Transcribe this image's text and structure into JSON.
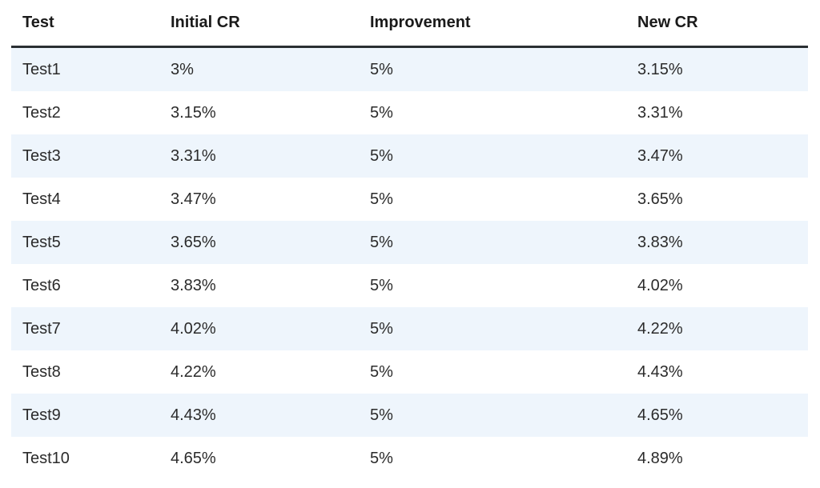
{
  "table": {
    "headers": [
      "Test",
      "Initial CR",
      "Improvement",
      "New CR"
    ],
    "rows": [
      [
        "Test1",
        "3%",
        "5%",
        "3.15%"
      ],
      [
        "Test2",
        "3.15%",
        "5%",
        "3.31%"
      ],
      [
        "Test3",
        "3.31%",
        "5%",
        "3.47%"
      ],
      [
        "Test4",
        "3.47%",
        "5%",
        "3.65%"
      ],
      [
        "Test5",
        "3.65%",
        "5%",
        "3.83%"
      ],
      [
        "Test6",
        "3.83%",
        "5%",
        "4.02%"
      ],
      [
        "Test7",
        "4.02%",
        "5%",
        "4.22%"
      ],
      [
        "Test8",
        "4.22%",
        "5%",
        "4.43%"
      ],
      [
        "Test9",
        "4.43%",
        "5%",
        "4.65%"
      ],
      [
        "Test10",
        "4.65%",
        "5%",
        "4.89%"
      ]
    ],
    "row_stripe_color": "#eef5fc",
    "header_rule_color": "#2a2f33"
  }
}
